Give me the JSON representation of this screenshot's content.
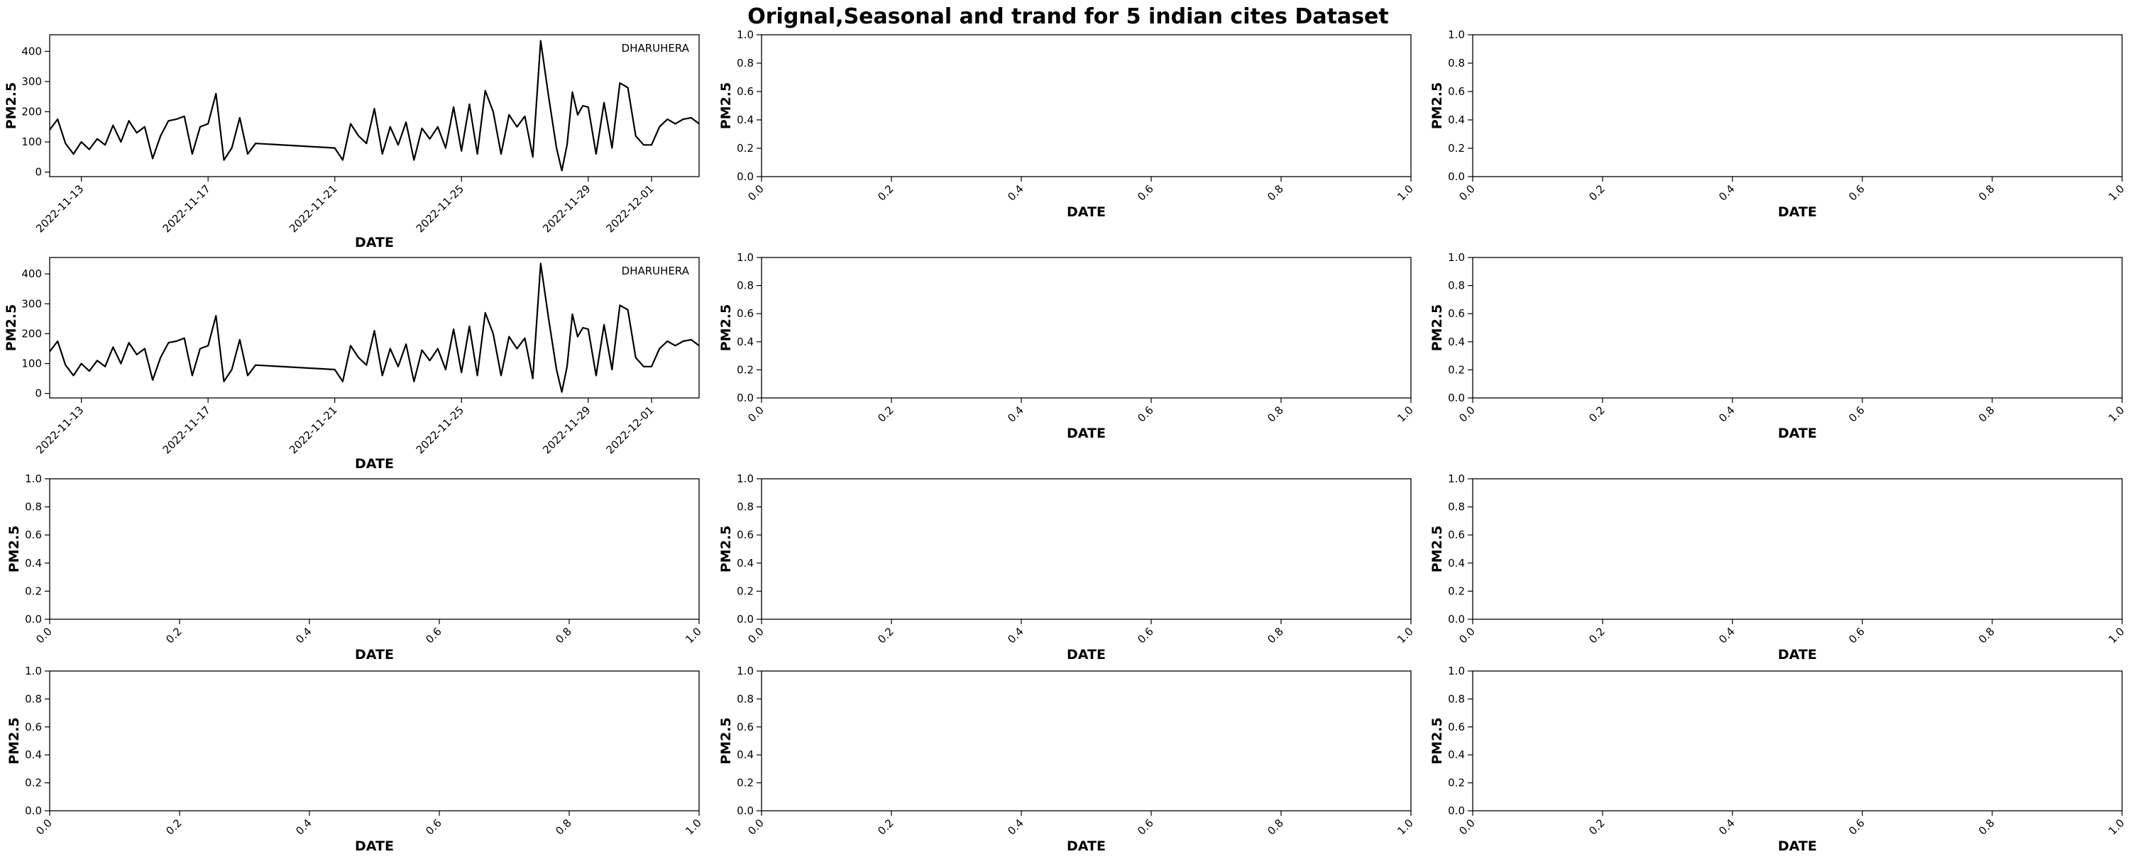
{
  "suptitle": "Orignal,Seasonal and trand for 5 indian cites Dataset",
  "colors": {
    "line": "#000000",
    "background": "#ffffff"
  },
  "chart_data": [
    {
      "type": "line",
      "panel": "row1-col1",
      "xlabel": "DATE",
      "ylabel": "PM2.5",
      "x_range": [
        "2022-11-12",
        "2022-12-02T12:00"
      ],
      "xticks": [
        "2022-11-13",
        "2022-11-17",
        "2022-11-21",
        "2022-11-25",
        "2022-11-29",
        "2022-12-01"
      ],
      "ylim": [
        -15,
        455
      ],
      "yticks": [
        0,
        100,
        200,
        300,
        400
      ],
      "grid": false,
      "legend_position": "top-right",
      "series": [
        {
          "name": "DHARUHERA",
          "x": [
            "2022-11-12T00:00",
            "2022-11-12T06:00",
            "2022-11-12T12:00",
            "2022-11-12T18:00",
            "2022-11-13T00:00",
            "2022-11-13T06:00",
            "2022-11-13T12:00",
            "2022-11-13T18:00",
            "2022-11-14T00:00",
            "2022-11-14T06:00",
            "2022-11-14T12:00",
            "2022-11-14T18:00",
            "2022-11-15T00:00",
            "2022-11-15T06:00",
            "2022-11-15T12:00",
            "2022-11-15T18:00",
            "2022-11-16T00:00",
            "2022-11-16T06:00",
            "2022-11-16T12:00",
            "2022-11-16T18:00",
            "2022-11-17T00:00",
            "2022-11-17T06:00",
            "2022-11-17T12:00",
            "2022-11-17T18:00",
            "2022-11-18T00:00",
            "2022-11-18T06:00",
            "2022-11-18T12:00",
            "2022-11-21T00:00",
            "2022-11-21T06:00",
            "2022-11-21T12:00",
            "2022-11-21T18:00",
            "2022-11-22T00:00",
            "2022-11-22T06:00",
            "2022-11-22T12:00",
            "2022-11-22T18:00",
            "2022-11-23T00:00",
            "2022-11-23T06:00",
            "2022-11-23T12:00",
            "2022-11-23T18:00",
            "2022-11-24T00:00",
            "2022-11-24T06:00",
            "2022-11-24T12:00",
            "2022-11-24T18:00",
            "2022-11-25T00:00",
            "2022-11-25T06:00",
            "2022-11-25T12:00",
            "2022-11-25T18:00",
            "2022-11-26T00:00",
            "2022-11-26T06:00",
            "2022-11-26T12:00",
            "2022-11-26T18:00",
            "2022-11-27T00:00",
            "2022-11-27T06:00",
            "2022-11-27T12:00",
            "2022-11-27T18:00",
            "2022-11-28T00:00",
            "2022-11-28T04:00",
            "2022-11-28T08:00",
            "2022-11-28T12:00",
            "2022-11-28T16:00",
            "2022-11-28T20:00",
            "2022-11-29T00:00",
            "2022-11-29T06:00",
            "2022-11-29T12:00",
            "2022-11-29T18:00",
            "2022-11-30T00:00",
            "2022-11-30T06:00",
            "2022-11-30T12:00",
            "2022-11-30T18:00",
            "2022-12-01T00:00",
            "2022-12-01T06:00",
            "2022-12-01T12:00",
            "2022-12-01T18:00",
            "2022-12-02T00:00",
            "2022-12-02T06:00",
            "2022-12-02T12:00"
          ],
          "values": [
            140,
            175,
            95,
            60,
            100,
            75,
            110,
            90,
            155,
            100,
            170,
            130,
            150,
            45,
            120,
            170,
            175,
            185,
            60,
            150,
            160,
            260,
            40,
            80,
            180,
            60,
            95,
            80,
            40,
            160,
            120,
            95,
            210,
            60,
            150,
            90,
            165,
            40,
            145,
            110,
            150,
            80,
            215,
            70,
            225,
            60,
            270,
            200,
            60,
            190,
            150,
            185,
            50,
            435,
            250,
            80,
            5,
            90,
            265,
            190,
            220,
            215,
            60,
            230,
            80,
            295,
            280,
            120,
            90,
            90,
            150,
            175,
            160,
            175,
            180,
            160
          ]
        }
      ]
    },
    {
      "type": "line",
      "panel": "row2-col1",
      "xlabel": "DATE",
      "ylabel": "PM2.5",
      "x_range": [
        "2022-11-12",
        "2022-12-02T12:00"
      ],
      "xticks": [
        "2022-11-13",
        "2022-11-17",
        "2022-11-21",
        "2022-11-25",
        "2022-11-29",
        "2022-12-01"
      ],
      "ylim": [
        -15,
        455
      ],
      "yticks": [
        0,
        100,
        200,
        300,
        400
      ],
      "grid": false,
      "legend_position": "top-right",
      "series": [
        {
          "name": "DHARUHERA",
          "x": [
            "2022-11-12T00:00",
            "2022-11-12T06:00",
            "2022-11-12T12:00",
            "2022-11-12T18:00",
            "2022-11-13T00:00",
            "2022-11-13T06:00",
            "2022-11-13T12:00",
            "2022-11-13T18:00",
            "2022-11-14T00:00",
            "2022-11-14T06:00",
            "2022-11-14T12:00",
            "2022-11-14T18:00",
            "2022-11-15T00:00",
            "2022-11-15T06:00",
            "2022-11-15T12:00",
            "2022-11-15T18:00",
            "2022-11-16T00:00",
            "2022-11-16T06:00",
            "2022-11-16T12:00",
            "2022-11-16T18:00",
            "2022-11-17T00:00",
            "2022-11-17T06:00",
            "2022-11-17T12:00",
            "2022-11-17T18:00",
            "2022-11-18T00:00",
            "2022-11-18T06:00",
            "2022-11-18T12:00",
            "2022-11-21T00:00",
            "2022-11-21T06:00",
            "2022-11-21T12:00",
            "2022-11-21T18:00",
            "2022-11-22T00:00",
            "2022-11-22T06:00",
            "2022-11-22T12:00",
            "2022-11-22T18:00",
            "2022-11-23T00:00",
            "2022-11-23T06:00",
            "2022-11-23T12:00",
            "2022-11-23T18:00",
            "2022-11-24T00:00",
            "2022-11-24T06:00",
            "2022-11-24T12:00",
            "2022-11-24T18:00",
            "2022-11-25T00:00",
            "2022-11-25T06:00",
            "2022-11-25T12:00",
            "2022-11-25T18:00",
            "2022-11-26T00:00",
            "2022-11-26T06:00",
            "2022-11-26T12:00",
            "2022-11-26T18:00",
            "2022-11-27T00:00",
            "2022-11-27T06:00",
            "2022-11-27T12:00",
            "2022-11-27T18:00",
            "2022-11-28T00:00",
            "2022-11-28T04:00",
            "2022-11-28T08:00",
            "2022-11-28T12:00",
            "2022-11-28T16:00",
            "2022-11-28T20:00",
            "2022-11-29T00:00",
            "2022-11-29T06:00",
            "2022-11-29T12:00",
            "2022-11-29T18:00",
            "2022-11-30T00:00",
            "2022-11-30T06:00",
            "2022-11-30T12:00",
            "2022-11-30T18:00",
            "2022-12-01T00:00",
            "2022-12-01T06:00",
            "2022-12-01T12:00",
            "2022-12-01T18:00",
            "2022-12-02T00:00",
            "2022-12-02T06:00",
            "2022-12-02T12:00"
          ],
          "values": [
            140,
            175,
            95,
            60,
            100,
            75,
            110,
            90,
            155,
            100,
            170,
            130,
            150,
            45,
            120,
            170,
            175,
            185,
            60,
            150,
            160,
            260,
            40,
            80,
            180,
            60,
            95,
            80,
            40,
            160,
            120,
            95,
            210,
            60,
            150,
            90,
            165,
            40,
            145,
            110,
            150,
            80,
            215,
            70,
            225,
            60,
            270,
            200,
            60,
            190,
            150,
            185,
            50,
            435,
            250,
            80,
            5,
            90,
            265,
            190,
            220,
            215,
            60,
            230,
            80,
            295,
            280,
            120,
            90,
            90,
            150,
            175,
            160,
            175,
            180,
            160
          ]
        }
      ]
    },
    {
      "type": "line",
      "panel": "row1-col2",
      "xlabel": "DATE",
      "ylabel": "PM2.5",
      "xlim": [
        0,
        1
      ],
      "ylim": [
        0,
        1
      ],
      "xticks": [
        "0.0",
        "0.2",
        "0.4",
        "0.6",
        "0.8",
        "1.0"
      ],
      "yticks": [
        "0.0",
        "0.2",
        "0.4",
        "0.6",
        "0.8",
        "1.0"
      ],
      "series": []
    },
    {
      "type": "line",
      "panel": "row1-col3",
      "xlabel": "DATE",
      "ylabel": "PM2.5",
      "xlim": [
        0,
        1
      ],
      "ylim": [
        0,
        1
      ],
      "xticks": [
        "0.0",
        "0.2",
        "0.4",
        "0.6",
        "0.8",
        "1.0"
      ],
      "yticks": [
        "0.0",
        "0.2",
        "0.4",
        "0.6",
        "0.8",
        "1.0"
      ],
      "series": []
    },
    {
      "type": "line",
      "panel": "row2-col2",
      "xlabel": "DATE",
      "ylabel": "PM2.5",
      "xlim": [
        0,
        1
      ],
      "ylim": [
        0,
        1
      ],
      "xticks": [
        "0.0",
        "0.2",
        "0.4",
        "0.6",
        "0.8",
        "1.0"
      ],
      "yticks": [
        "0.0",
        "0.2",
        "0.4",
        "0.6",
        "0.8",
        "1.0"
      ],
      "series": []
    },
    {
      "type": "line",
      "panel": "row2-col3",
      "xlabel": "DATE",
      "ylabel": "PM2.5",
      "xlim": [
        0,
        1
      ],
      "ylim": [
        0,
        1
      ],
      "xticks": [
        "0.0",
        "0.2",
        "0.4",
        "0.6",
        "0.8",
        "1.0"
      ],
      "yticks": [
        "0.0",
        "0.2",
        "0.4",
        "0.6",
        "0.8",
        "1.0"
      ],
      "series": []
    },
    {
      "type": "line",
      "panel": "row3-col1",
      "xlabel": "DATE",
      "ylabel": "PM2.5",
      "xlim": [
        0,
        1
      ],
      "ylim": [
        0,
        1
      ],
      "xticks": [
        "0.0",
        "0.2",
        "0.4",
        "0.6",
        "0.8",
        "1.0"
      ],
      "yticks": [
        "0.0",
        "0.2",
        "0.4",
        "0.6",
        "0.8",
        "1.0"
      ],
      "series": []
    },
    {
      "type": "line",
      "panel": "row3-col2",
      "xlabel": "DATE",
      "ylabel": "PM2.5",
      "xlim": [
        0,
        1
      ],
      "ylim": [
        0,
        1
      ],
      "xticks": [
        "0.0",
        "0.2",
        "0.4",
        "0.6",
        "0.8",
        "1.0"
      ],
      "yticks": [
        "0.0",
        "0.2",
        "0.4",
        "0.6",
        "0.8",
        "1.0"
      ],
      "series": []
    },
    {
      "type": "line",
      "panel": "row3-col3",
      "xlabel": "DATE",
      "ylabel": "PM2.5",
      "xlim": [
        0,
        1
      ],
      "ylim": [
        0,
        1
      ],
      "xticks": [
        "0.0",
        "0.2",
        "0.4",
        "0.6",
        "0.8",
        "1.0"
      ],
      "yticks": [
        "0.0",
        "0.2",
        "0.4",
        "0.6",
        "0.8",
        "1.0"
      ],
      "series": []
    },
    {
      "type": "line",
      "panel": "row4-col1",
      "xlabel": "DATE",
      "ylabel": "PM2.5",
      "xlim": [
        0,
        1
      ],
      "ylim": [
        0,
        1
      ],
      "xticks": [
        "0.0",
        "0.2",
        "0.4",
        "0.6",
        "0.8",
        "1.0"
      ],
      "yticks": [
        "0.0",
        "0.2",
        "0.4",
        "0.6",
        "0.8",
        "1.0"
      ],
      "series": []
    },
    {
      "type": "line",
      "panel": "row4-col2",
      "xlabel": "DATE",
      "ylabel": "PM2.5",
      "xlim": [
        0,
        1
      ],
      "ylim": [
        0,
        1
      ],
      "xticks": [
        "0.0",
        "0.2",
        "0.4",
        "0.6",
        "0.8",
        "1.0"
      ],
      "yticks": [
        "0.0",
        "0.2",
        "0.4",
        "0.6",
        "0.8",
        "1.0"
      ],
      "series": []
    },
    {
      "type": "line",
      "panel": "row4-col3",
      "xlabel": "DATE",
      "ylabel": "PM2.5",
      "xlim": [
        0,
        1
      ],
      "ylim": [
        0,
        1
      ],
      "xticks": [
        "0.0",
        "0.2",
        "0.4",
        "0.6",
        "0.8",
        "1.0"
      ],
      "yticks": [
        "0.0",
        "0.2",
        "0.4",
        "0.6",
        "0.8",
        "1.0"
      ],
      "series": []
    }
  ]
}
